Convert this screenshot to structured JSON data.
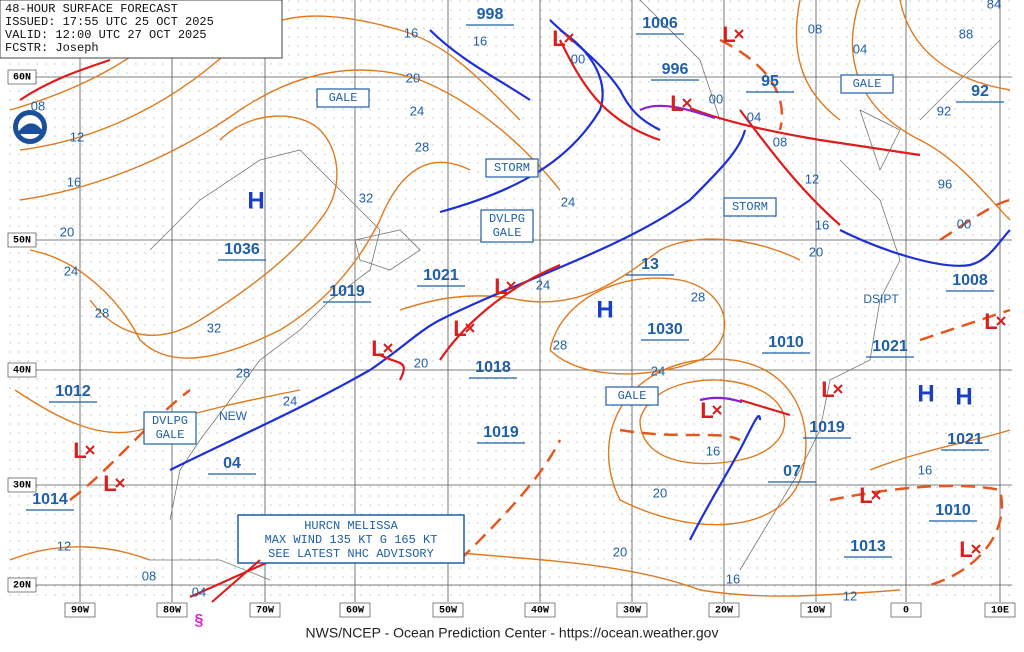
{
  "header": {
    "lines": [
      "48-HOUR SURFACE FORECAST",
      "ISSUED: 17:55 UTC 25 OCT 2025",
      "VALID: 12:00 UTC 27 OCT 2025",
      "FCSTR: Joseph"
    ]
  },
  "footer": "NWS/NCEP - Ocean Prediction Center - https://ocean.weather.gov",
  "hurricane_box": [
    "HURCN MELISSA",
    "MAX WIND 135 KT G 165 KT",
    "SEE LATEST NHC ADVISORY"
  ],
  "warnings": [
    [
      "GALE"
    ],
    [
      "STORM"
    ],
    [
      "DVLPG",
      "GALE"
    ],
    [
      "STORM"
    ],
    [
      "GALE"
    ],
    [
      "GALE"
    ],
    [
      "DVLPG",
      "GALE"
    ]
  ],
  "pressures": [
    "998",
    "1006",
    "996",
    "95",
    "92",
    "1036",
    "1021",
    "1019",
    "13",
    "1030",
    "1010",
    "1008",
    "1021",
    "1012",
    "1018",
    "1019",
    "1019",
    "1021",
    "1014",
    "04",
    "07",
    "1010",
    "1013"
  ],
  "highs": [
    "H",
    "H",
    "H",
    "H"
  ],
  "lows": [
    "L",
    "L",
    "L",
    "L",
    "L",
    "L",
    "L",
    "L",
    "L",
    "L",
    "L",
    "L",
    "L"
  ],
  "isobar_labels": [
    "16",
    "16",
    "00",
    "00",
    "04",
    "08",
    "08",
    "04",
    "84",
    "88",
    "92",
    "96",
    "00",
    "12",
    "16",
    "20",
    "20",
    "24",
    "28",
    "32",
    "08",
    "12",
    "16",
    "20",
    "24",
    "28",
    "32",
    "28",
    "24",
    "20",
    "24",
    "24",
    "28",
    "28",
    "24",
    "16",
    "20",
    "16",
    "20",
    "16",
    "12",
    "12",
    "08",
    "04"
  ],
  "notes": [
    "DSIPT",
    "NEW"
  ],
  "lat_labels": [
    "60N",
    "50N",
    "40N",
    "30N",
    "20N"
  ],
  "lon_labels": [
    "90W",
    "80W",
    "70W",
    "60W",
    "50W",
    "40W",
    "30W",
    "20W",
    "10W",
    "0",
    "10E"
  ]
}
